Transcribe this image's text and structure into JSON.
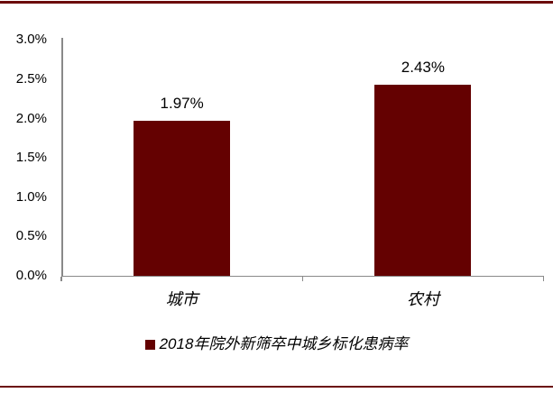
{
  "chart_data": {
    "type": "bar",
    "title": "",
    "categories": [
      "城市",
      "农村"
    ],
    "values": [
      1.97,
      2.43
    ],
    "value_labels": [
      "1.97%",
      "2.43%"
    ],
    "xlabel": "",
    "ylabel": "",
    "ylim": [
      0,
      3.0
    ],
    "ytick_step": 0.5,
    "ytick_labels": [
      "0.0%",
      "0.5%",
      "1.0%",
      "1.5%",
      "2.0%",
      "2.5%",
      "3.0%"
    ],
    "grid": false,
    "legend_position": "bottom",
    "legend": [
      {
        "label": "2018年院外新筛卒中城乡标化患病率",
        "color": "#640101"
      }
    ],
    "colors": {
      "bar": "#640101",
      "border_rule": "#6b0b0b",
      "axis": "#898989",
      "text": "#000000"
    }
  }
}
